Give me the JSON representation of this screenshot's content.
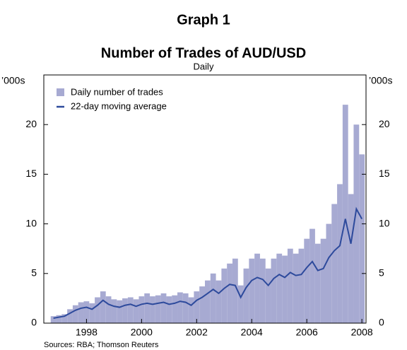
{
  "chart_data": {
    "type": "bar_line",
    "title": "Graph 1",
    "subtitle": "Number of Trades of AUD/USD",
    "frequency": "Daily",
    "y_unit": "’000s",
    "y2_unit": "’000s",
    "source": "Sources: RBA; Thomson Reuters",
    "x": [
      1996.8,
      1997.0,
      1997.2,
      1997.4,
      1997.6,
      1997.8,
      1998.0,
      1998.2,
      1998.4,
      1998.6,
      1998.8,
      1999.0,
      1999.2,
      1999.4,
      1999.6,
      1999.8,
      2000.0,
      2000.2,
      2000.4,
      2000.6,
      2000.8,
      2001.0,
      2001.2,
      2001.4,
      2001.6,
      2001.8,
      2002.0,
      2002.2,
      2002.4,
      2002.6,
      2002.8,
      2003.0,
      2003.2,
      2003.4,
      2003.6,
      2003.8,
      2004.0,
      2004.2,
      2004.4,
      2004.6,
      2004.8,
      2005.0,
      2005.2,
      2005.4,
      2005.6,
      2005.8,
      2006.0,
      2006.2,
      2006.4,
      2006.6,
      2006.8,
      2007.0,
      2007.2,
      2007.4,
      2007.6,
      2007.8,
      2008.0
    ],
    "series": [
      {
        "name": "Daily number of trades",
        "color": "#a7aad2",
        "values": [
          0.7,
          0.8,
          0.9,
          1.4,
          1.8,
          2.1,
          2.2,
          2.0,
          2.6,
          3.2,
          2.7,
          2.4,
          2.3,
          2.5,
          2.6,
          2.4,
          2.7,
          3.0,
          2.7,
          2.8,
          3.0,
          2.7,
          2.8,
          3.1,
          3.0,
          2.6,
          3.2,
          3.7,
          4.3,
          5.0,
          4.3,
          5.5,
          6.0,
          6.5,
          3.8,
          5.5,
          6.5,
          7.0,
          6.5,
          5.5,
          6.5,
          7.0,
          6.8,
          7.5,
          7.0,
          7.5,
          8.5,
          9.5,
          8.0,
          8.5,
          10.0,
          12.0,
          14.0,
          22.0,
          13.0,
          20.0,
          17.0
        ]
      },
      {
        "name": "22-day moving average",
        "color": "#2d4a9c",
        "values": [
          0.5,
          0.6,
          0.7,
          1.0,
          1.3,
          1.5,
          1.6,
          1.4,
          1.8,
          2.3,
          1.9,
          1.7,
          1.6,
          1.8,
          1.9,
          1.7,
          1.9,
          2.0,
          1.9,
          2.0,
          2.1,
          1.9,
          2.0,
          2.2,
          2.1,
          1.8,
          2.3,
          2.6,
          3.0,
          3.4,
          3.0,
          3.5,
          3.9,
          3.8,
          2.6,
          3.6,
          4.3,
          4.6,
          4.4,
          3.8,
          4.5,
          4.9,
          4.6,
          5.1,
          4.8,
          4.9,
          5.6,
          6.2,
          5.3,
          5.5,
          6.6,
          7.3,
          7.8,
          10.5,
          8.0,
          11.5,
          10.5
        ]
      }
    ],
    "xlim": [
      1996.45,
      2008.15
    ],
    "xticks": [
      1998,
      2000,
      2002,
      2004,
      2006,
      2008
    ],
    "ylim": [
      0,
      25
    ],
    "yticks": [
      0,
      5,
      10,
      15,
      20
    ],
    "y2lim": [
      0,
      25
    ],
    "y2ticks": [
      0,
      5,
      10,
      15,
      20
    ]
  }
}
